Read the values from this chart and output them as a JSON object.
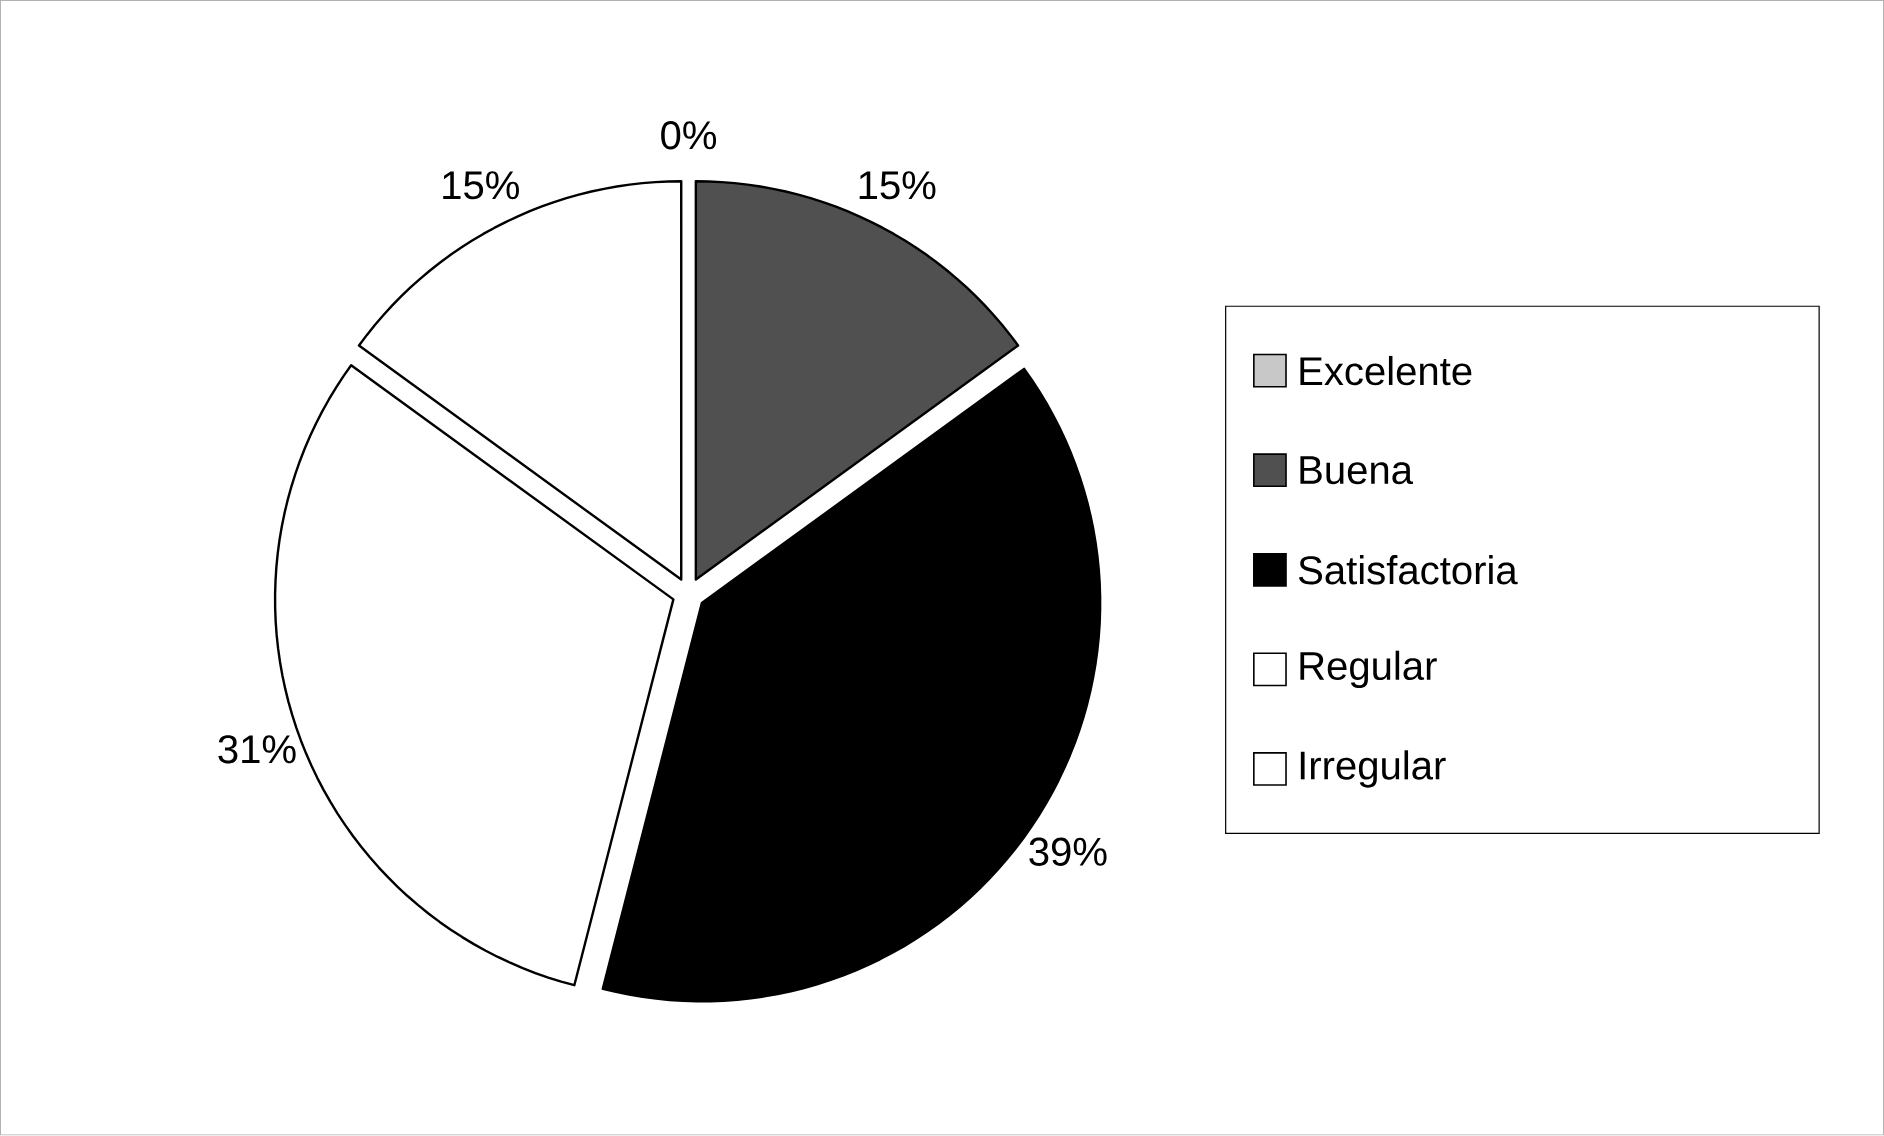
{
  "chart_data": {
    "type": "pie",
    "categories": [
      "Excelente",
      "Buena",
      "Satisfactoria",
      "Regular",
      "Irregular"
    ],
    "values": [
      0,
      15,
      39,
      31,
      15
    ],
    "colors": [
      "#c8c8c8",
      "#505050",
      "#000000",
      "#ffffff",
      "#ffffff"
    ],
    "value_labels": [
      "0%",
      "15%",
      "39%",
      "31%",
      "15%"
    ],
    "legend": "right"
  }
}
